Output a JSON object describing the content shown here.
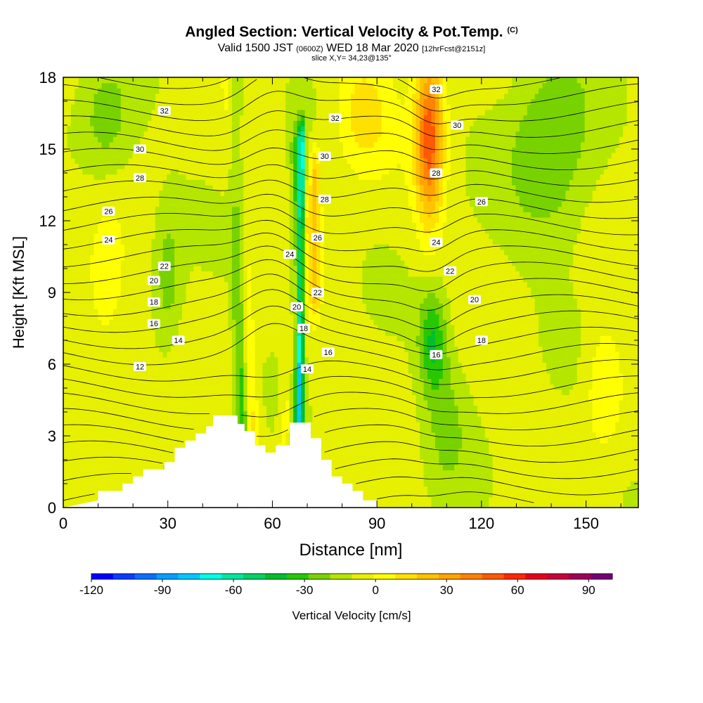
{
  "title": {
    "main": "Angled Section: Vertical Velocity & Pot.Temp.",
    "unit": "(C)",
    "valid_prefix": "Valid 1500 JST",
    "valid_utc": "(0600Z)",
    "valid_suffix": "WED 18 Mar 2020",
    "forecast": "[12hrFcst@2151z]",
    "slice": "slice X,Y= 34,23@135°"
  },
  "chart_data": {
    "type": "heatmap",
    "xlabel": "Distance [nm]",
    "ylabel": "Height [Kft MSL]",
    "xlim": [
      0,
      165
    ],
    "ylim": [
      0,
      18
    ],
    "x_ticks": [
      0,
      30,
      60,
      90,
      120,
      150
    ],
    "y_ticks": [
      0,
      3,
      6,
      9,
      12,
      15,
      18
    ],
    "grid": false,
    "colorbar": {
      "label": "Vertical Velocity [cm/s]",
      "min": -120,
      "max": 100,
      "step": 10,
      "tick_values": [
        -120,
        -90,
        -60,
        -30,
        0,
        30,
        60,
        90
      ],
      "colors": [
        "#0000ff",
        "#0a3cff",
        "#0a6eff",
        "#00a0ff",
        "#00c8ff",
        "#00ffe6",
        "#00e6a0",
        "#00d264",
        "#00be2d",
        "#28c800",
        "#78d200",
        "#b4e600",
        "#e6f000",
        "#ffff00",
        "#ffe100",
        "#ffc300",
        "#ffa500",
        "#ff8200",
        "#ff5a00",
        "#ff2800",
        "#e6001e",
        "#c8003c",
        "#a0005a",
        "#780078"
      ]
    },
    "contour_field": "Potential Temperature (C)",
    "contour_labels": [
      {
        "v": "32",
        "x": 29,
        "y": 16.6
      },
      {
        "v": "30",
        "x": 22,
        "y": 15.0
      },
      {
        "v": "28",
        "x": 22,
        "y": 13.8
      },
      {
        "v": "26",
        "x": 13,
        "y": 12.4
      },
      {
        "v": "24",
        "x": 13,
        "y": 11.2
      },
      {
        "v": "22",
        "x": 29,
        "y": 10.1
      },
      {
        "v": "20",
        "x": 26,
        "y": 9.5
      },
      {
        "v": "18",
        "x": 26,
        "y": 8.6
      },
      {
        "v": "16",
        "x": 26,
        "y": 7.7
      },
      {
        "v": "14",
        "x": 33,
        "y": 7.0
      },
      {
        "v": "12",
        "x": 22,
        "y": 5.9
      },
      {
        "v": "32",
        "x": 78,
        "y": 16.3
      },
      {
        "v": "30",
        "x": 75,
        "y": 14.7
      },
      {
        "v": "28",
        "x": 75,
        "y": 12.9
      },
      {
        "v": "26",
        "x": 73,
        "y": 11.3
      },
      {
        "v": "24",
        "x": 65,
        "y": 10.6
      },
      {
        "v": "22",
        "x": 73,
        "y": 9.0
      },
      {
        "v": "20",
        "x": 67,
        "y": 8.4
      },
      {
        "v": "18",
        "x": 69,
        "y": 7.5
      },
      {
        "v": "16",
        "x": 76,
        "y": 6.5
      },
      {
        "v": "14",
        "x": 70,
        "y": 5.8
      },
      {
        "v": "32",
        "x": 107,
        "y": 17.5
      },
      {
        "v": "30",
        "x": 113,
        "y": 16.0
      },
      {
        "v": "28",
        "x": 107,
        "y": 14.0
      },
      {
        "v": "26",
        "x": 120,
        "y": 12.8
      },
      {
        "v": "24",
        "x": 107,
        "y": 11.1
      },
      {
        "v": "22",
        "x": 111,
        "y": 9.9
      },
      {
        "v": "20",
        "x": 118,
        "y": 8.7
      },
      {
        "v": "18",
        "x": 120,
        "y": 7.0
      },
      {
        "v": "16",
        "x": 107,
        "y": 6.4
      }
    ]
  }
}
